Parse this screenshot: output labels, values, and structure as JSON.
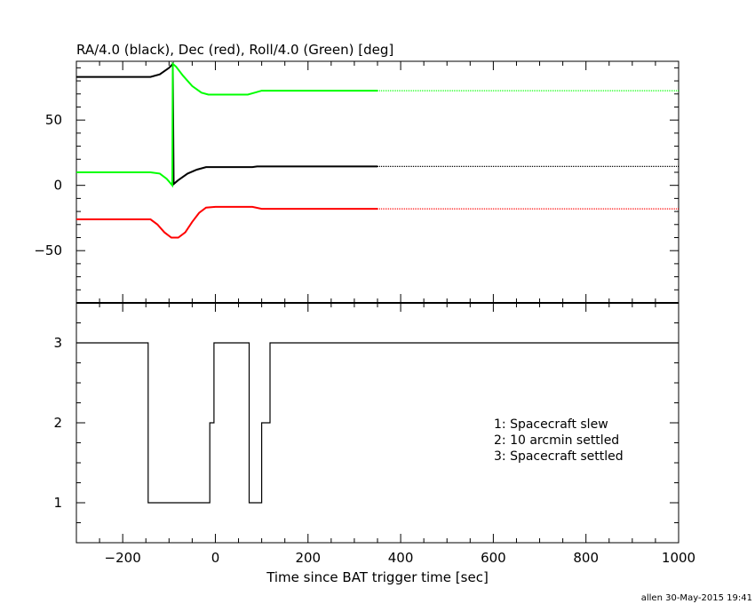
{
  "chart_data": [
    {
      "type": "line",
      "title": "RA/4.0 (black), Dec (red), Roll/4.0 (Green) [deg]",
      "xlim": [
        -300,
        1000
      ],
      "ylim": [
        -90,
        95
      ],
      "ytick_labels": [
        "50",
        "0",
        "−50"
      ],
      "ytick_values": [
        50,
        0,
        -50
      ],
      "series": [
        {
          "color": "#000000",
          "points": [
            [
              -300,
              83
            ],
            [
              -140,
              83
            ],
            [
              -120,
              85
            ],
            [
              -100,
              90
            ],
            [
              -92,
              93
            ],
            [
              -90,
              1
            ],
            [
              -80,
              4
            ],
            [
              -60,
              9
            ],
            [
              -40,
              12
            ],
            [
              -20,
              14
            ],
            [
              0,
              14
            ],
            [
              80,
              14
            ],
            [
              90,
              14.5
            ],
            [
              350,
              14.5
            ],
            [
              1000,
              14.5
            ]
          ],
          "dotted_from": 350
        },
        {
          "color": "#ff0000",
          "points": [
            [
              -300,
              -26
            ],
            [
              -140,
              -26
            ],
            [
              -125,
              -30
            ],
            [
              -110,
              -36
            ],
            [
              -95,
              -40
            ],
            [
              -80,
              -40
            ],
            [
              -65,
              -36
            ],
            [
              -50,
              -28
            ],
            [
              -35,
              -21
            ],
            [
              -20,
              -17
            ],
            [
              0,
              -16.5
            ],
            [
              80,
              -16.5
            ],
            [
              100,
              -18
            ],
            [
              350,
              -18
            ],
            [
              1000,
              -18
            ]
          ],
          "dotted_from": 350
        },
        {
          "color": "#00ff00",
          "points": [
            [
              -300,
              10
            ],
            [
              -140,
              10
            ],
            [
              -120,
              9
            ],
            [
              -105,
              5
            ],
            [
              -93,
              0
            ],
            [
              -92,
              93
            ],
            [
              -85,
              91
            ],
            [
              -70,
              84
            ],
            [
              -50,
              76
            ],
            [
              -30,
              71
            ],
            [
              -15,
              69.5
            ],
            [
              70,
              69.5
            ],
            [
              85,
              71
            ],
            [
              100,
              72.5
            ],
            [
              350,
              72.5
            ],
            [
              1000,
              72.5
            ]
          ],
          "dotted_from": 350
        }
      ]
    },
    {
      "type": "line",
      "xlabel": "Time since BAT trigger time [sec]",
      "xlim": [
        -300,
        1000
      ],
      "ylim": [
        0.5,
        3.5
      ],
      "xtick_labels": [
        "−200",
        "0",
        "200",
        "400",
        "600",
        "800",
        "1000"
      ],
      "xtick_values": [
        -200,
        0,
        200,
        400,
        600,
        800,
        1000
      ],
      "ytick_labels": [
        "3",
        "2",
        "1"
      ],
      "ytick_values": [
        3,
        2,
        1
      ],
      "legend": [
        "1: Spacecraft slew",
        "2: 10 arcmin settled",
        "3: Spacecraft settled"
      ],
      "legend_position": "right",
      "series": [
        {
          "color": "#000000",
          "step_points": [
            [
              -300,
              3
            ],
            [
              -145,
              3
            ],
            [
              -145,
              1
            ],
            [
              -12,
              1
            ],
            [
              -12,
              2
            ],
            [
              -3,
              2
            ],
            [
              -3,
              3
            ],
            [
              73,
              3
            ],
            [
              73,
              1
            ],
            [
              100,
              1
            ],
            [
              100,
              2
            ],
            [
              118,
              2
            ],
            [
              118,
              3
            ],
            [
              1000,
              3
            ]
          ]
        }
      ]
    }
  ],
  "footer": "allen 30-May-2015 19:41"
}
